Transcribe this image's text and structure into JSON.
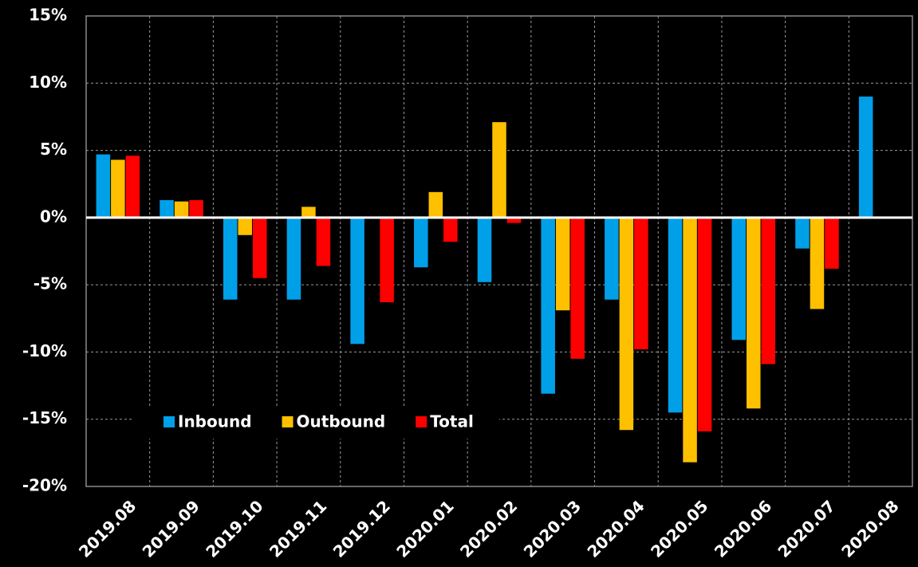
{
  "chart_data": {
    "type": "bar",
    "categories": [
      "2019.08",
      "2019.09",
      "2019.10",
      "2019.11",
      "2019.12",
      "2020.01",
      "2020.02",
      "2020.03",
      "2020.04",
      "2020.05",
      "2020.06",
      "2020.07",
      "2020.08"
    ],
    "series": [
      {
        "name": "Inbound",
        "color": "#00a0e9",
        "values": [
          4.7,
          1.3,
          -6.1,
          -6.1,
          -9.4,
          -3.7,
          -4.8,
          -13.1,
          -6.1,
          -14.5,
          -9.1,
          -2.3,
          9.0
        ]
      },
      {
        "name": "Outbound",
        "color": "#ffc000",
        "values": [
          4.3,
          1.2,
          -1.3,
          0.8,
          null,
          1.9,
          7.1,
          -6.9,
          -15.8,
          -18.2,
          -14.2,
          -6.8,
          null
        ]
      },
      {
        "name": "Total",
        "color": "#ff0000",
        "values": [
          4.6,
          1.3,
          -4.5,
          -3.6,
          -6.3,
          -1.8,
          -0.4,
          -10.5,
          -9.8,
          -15.9,
          -10.9,
          -3.8,
          null
        ]
      }
    ],
    "ylim": [
      -20,
      15
    ],
    "yticks": [
      {
        "value": -20,
        "label": "-20%"
      },
      {
        "value": -15,
        "label": "-15%"
      },
      {
        "value": -10,
        "label": "-10%"
      },
      {
        "value": -5,
        "label": "-5%"
      },
      {
        "value": 0,
        "label": "0%"
      },
      {
        "value": 5,
        "label": "5%"
      },
      {
        "value": 10,
        "label": "10%"
      },
      {
        "value": 15,
        "label": "15%"
      }
    ],
    "grid": true,
    "legend": "lower left"
  }
}
